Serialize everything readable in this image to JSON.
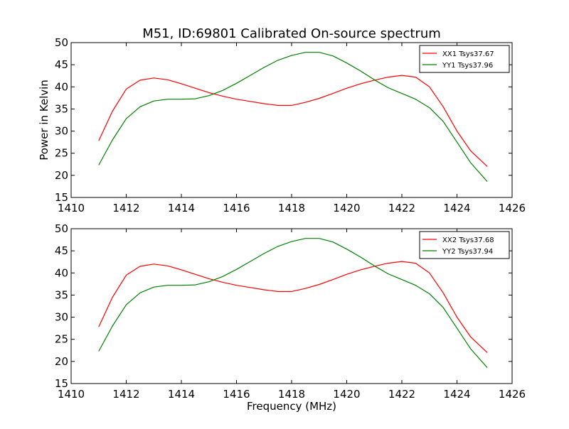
{
  "chart_data": {
    "title": "M51, ID:69801 Calibrated On-source spectrum",
    "xlabel": "Frequency (MHz)",
    "panels": [
      {
        "type": "line",
        "ylabel": "Power in Kelvin",
        "xlim": [
          1410,
          1426
        ],
        "ylim": [
          15,
          50
        ],
        "x_ticks": [
          "1410",
          "1412",
          "1414",
          "1416",
          "1418",
          "1420",
          "1422",
          "1424",
          "1426"
        ],
        "y_ticks": [
          "15",
          "20",
          "25",
          "30",
          "35",
          "40",
          "45",
          "50"
        ],
        "legend_position": "top-right",
        "series": [
          {
            "name": "XX1 Tsys37.67",
            "color": "#ff0000",
            "x": [
              1411.0,
              1411.5,
              1412.0,
              1412.5,
              1413.0,
              1413.5,
              1414.0,
              1414.5,
              1415.0,
              1415.5,
              1416.0,
              1416.5,
              1417.0,
              1417.5,
              1418.0,
              1418.5,
              1419.0,
              1419.5,
              1420.0,
              1420.5,
              1421.0,
              1421.5,
              1422.0,
              1422.5,
              1423.0,
              1423.5,
              1424.0,
              1424.5,
              1425.1
            ],
            "y": [
              27.8,
              34.5,
              39.5,
              41.5,
              42.0,
              41.6,
              40.7,
              39.7,
              38.7,
              37.9,
              37.2,
              36.7,
              36.2,
              35.8,
              35.8,
              36.5,
              37.4,
              38.5,
              39.7,
              40.7,
              41.5,
              42.2,
              42.6,
              42.2,
              40.0,
              35.5,
              30.0,
              25.5,
              22.0
            ]
          },
          {
            "name": "YY1 Tsys37.96",
            "color": "#008000",
            "x": [
              1411.0,
              1411.5,
              1412.0,
              1412.5,
              1413.0,
              1413.5,
              1414.0,
              1414.5,
              1415.0,
              1415.5,
              1416.0,
              1416.5,
              1417.0,
              1417.5,
              1418.0,
              1418.5,
              1419.0,
              1419.5,
              1420.0,
              1420.5,
              1421.0,
              1421.5,
              1422.0,
              1422.5,
              1423.0,
              1423.5,
              1424.0,
              1424.5,
              1425.1
            ],
            "y": [
              22.3,
              28.0,
              32.8,
              35.5,
              36.8,
              37.2,
              37.2,
              37.3,
              38.0,
              39.2,
              40.8,
              42.6,
              44.4,
              46.0,
              47.1,
              47.8,
              47.8,
              47.0,
              45.4,
              43.6,
              41.6,
              39.8,
              38.5,
              37.2,
              35.3,
              32.2,
              27.5,
              22.8,
              18.6
            ]
          }
        ]
      },
      {
        "type": "line",
        "ylabel": "",
        "xlim": [
          1410,
          1426
        ],
        "ylim": [
          15,
          50
        ],
        "x_ticks": [
          "1410",
          "1412",
          "1414",
          "1416",
          "1418",
          "1420",
          "1422",
          "1424",
          "1426"
        ],
        "y_ticks": [
          "15",
          "20",
          "25",
          "30",
          "35",
          "40",
          "45",
          "50"
        ],
        "legend_position": "top-right",
        "series": [
          {
            "name": "XX2 Tsys37.68",
            "color": "#ff0000",
            "x": [
              1411.0,
              1411.5,
              1412.0,
              1412.5,
              1413.0,
              1413.5,
              1414.0,
              1414.5,
              1415.0,
              1415.5,
              1416.0,
              1416.5,
              1417.0,
              1417.5,
              1418.0,
              1418.5,
              1419.0,
              1419.5,
              1420.0,
              1420.5,
              1421.0,
              1421.5,
              1422.0,
              1422.5,
              1423.0,
              1423.5,
              1424.0,
              1424.5,
              1425.1
            ],
            "y": [
              27.8,
              34.5,
              39.5,
              41.5,
              42.0,
              41.6,
              40.7,
              39.7,
              38.7,
              37.9,
              37.2,
              36.7,
              36.2,
              35.8,
              35.8,
              36.5,
              37.4,
              38.5,
              39.7,
              40.7,
              41.5,
              42.2,
              42.6,
              42.2,
              40.0,
              35.5,
              30.0,
              25.5,
              22.0
            ]
          },
          {
            "name": "YY2 Tsys37.94",
            "color": "#008000",
            "x": [
              1411.0,
              1411.5,
              1412.0,
              1412.5,
              1413.0,
              1413.5,
              1414.0,
              1414.5,
              1415.0,
              1415.5,
              1416.0,
              1416.5,
              1417.0,
              1417.5,
              1418.0,
              1418.5,
              1419.0,
              1419.5,
              1420.0,
              1420.5,
              1421.0,
              1421.5,
              1422.0,
              1422.5,
              1423.0,
              1423.5,
              1424.0,
              1424.5,
              1425.1
            ],
            "y": [
              22.3,
              28.0,
              32.8,
              35.5,
              36.8,
              37.2,
              37.2,
              37.3,
              38.0,
              39.2,
              40.8,
              42.6,
              44.4,
              46.0,
              47.1,
              47.8,
              47.8,
              47.0,
              45.4,
              43.6,
              41.6,
              39.8,
              38.5,
              37.2,
              35.3,
              32.2,
              27.5,
              22.8,
              18.6
            ]
          }
        ]
      }
    ]
  }
}
